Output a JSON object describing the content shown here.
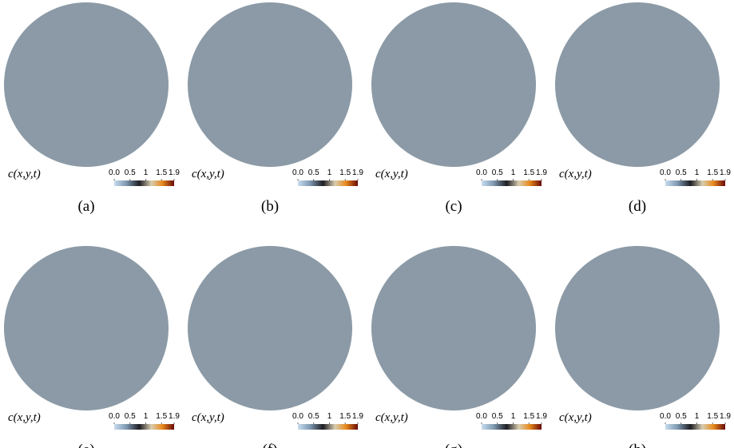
{
  "panels": [
    {
      "label": "(a)",
      "field_label": "c(x,y,t)"
    },
    {
      "label": "(b)",
      "field_label": "c(x,y,t)"
    },
    {
      "label": "(c)",
      "field_label": "c(x,y,t)"
    },
    {
      "label": "(d)",
      "field_label": "c(x,y,t)"
    },
    {
      "label": "(e)",
      "field_label": "c(x,y,t)"
    },
    {
      "label": "(f)",
      "field_label": "c(x,y,t)"
    },
    {
      "label": "(g)",
      "field_label": "c(x,y,t)"
    },
    {
      "label": "(h)",
      "field_label": "c(x,y,t)"
    }
  ],
  "colorbar": {
    "ticks": [
      {
        "value": 0,
        "label": "0.0"
      },
      0.5,
      1,
      1.5,
      1.9
    ]
  }
}
